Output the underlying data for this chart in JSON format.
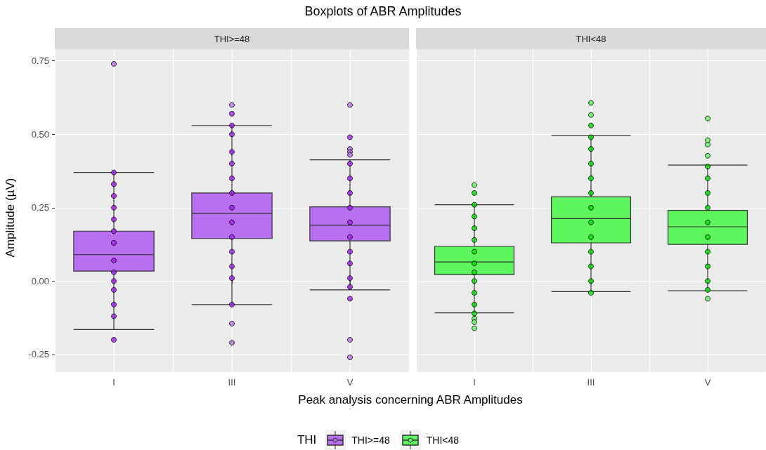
{
  "chart_data": [
    {
      "type": "box",
      "title": "Boxplots of ABR Amplitudes",
      "subtitle": "THI>=48",
      "xlabel": "Peak analysis concerning ABR Amplitudes",
      "ylabel": "Amplitude (µV)",
      "legend_title": "THI",
      "legend": "bottom",
      "grid": true,
      "categories": [
        "I",
        "III",
        "V"
      ],
      "ylim": [
        -0.31,
        0.79
      ],
      "yticks": [
        {
          "value": -0.25,
          "label": "-0.25"
        },
        {
          "value": 0,
          "label": "0.00"
        },
        {
          "value": 0.25,
          "label": "0.25"
        },
        {
          "value": 0.5,
          "label": "0.50"
        },
        {
          "value": 0.75,
          "label": "0.75"
        }
      ],
      "series": [
        {
          "name": "THI>=48",
          "color": "#b86ff0",
          "boxes": [
            {
              "low": -0.165,
              "q1": 0.034,
              "median": 0.09,
              "q3": 0.17,
              "high": 0.37,
              "mean": 0.105,
              "outliers": [
                0.74
              ]
            },
            {
              "low": -0.08,
              "q1": 0.145,
              "median": 0.23,
              "q3": 0.3,
              "high": 0.53,
              "mean": 0.232,
              "outliers": [
                0.6,
                -0.145,
                -0.21
              ]
            },
            {
              "low": -0.03,
              "q1": 0.137,
              "median": 0.19,
              "q3": 0.253,
              "high": 0.413,
              "mean": 0.192,
              "outliers": [
                0.6,
                0.45,
                0.44,
                0.43,
                -0.2,
                -0.26
              ]
            }
          ]
        },
        {
          "type": "scatter",
          "color": "#a020f0",
          "x": [
            "I",
            "I",
            "I",
            "I",
            "I",
            "I",
            "I",
            "I",
            "I",
            "I",
            "I",
            "I",
            "I",
            "I",
            "III",
            "III",
            "III",
            "III",
            "III",
            "III",
            "III",
            "III",
            "III",
            "III",
            "III",
            "III",
            "III",
            "III",
            "V",
            "V",
            "V",
            "V",
            "V",
            "V",
            "V",
            "V",
            "V",
            "V",
            "V",
            "V"
          ],
          "values": [
            0.37,
            0.33,
            0.29,
            0.25,
            0.21,
            0.17,
            0.13,
            0.07,
            0.03,
            0.0,
            -0.03,
            -0.08,
            -0.12,
            -0.2,
            0.57,
            0.53,
            0.5,
            0.44,
            0.4,
            0.35,
            0.3,
            0.25,
            0.2,
            0.15,
            0.1,
            0.05,
            0.01,
            -0.08,
            0.49,
            0.4,
            0.35,
            0.3,
            0.25,
            0.2,
            0.15,
            0.1,
            0.06,
            0.01,
            -0.02,
            -0.06
          ]
        }
      ]
    },
    {
      "type": "box",
      "subtitle": "THI<48",
      "grid": true,
      "tick_labels": "x",
      "categories": [
        "I",
        "III",
        "V"
      ],
      "ylim": [
        -0.31,
        0.79
      ],
      "yticks": [
        -0.25,
        0,
        0.25,
        0.5,
        0.75
      ],
      "series": [
        {
          "name": "THI<48",
          "color": "#5ff55f",
          "boxes": [
            {
              "low": -0.108,
              "q1": 0.022,
              "median": 0.065,
              "q3": 0.118,
              "high": 0.26,
              "mean": 0.072,
              "outliers": [
                0.327,
                -0.128,
                -0.14,
                -0.161
              ]
            },
            {
              "low": -0.036,
              "q1": 0.13,
              "median": 0.213,
              "q3": 0.287,
              "high": 0.496,
              "mean": 0.224,
              "outliers": [
                0.607,
                0.566
              ]
            },
            {
              "low": -0.033,
              "q1": 0.125,
              "median": 0.185,
              "q3": 0.241,
              "high": 0.395,
              "mean": 0.188,
              "outliers": [
                0.554,
                0.48,
                0.465,
                0.427,
                -0.06
              ]
            }
          ]
        },
        {
          "type": "scatter",
          "color": "#00e000",
          "x": [
            "I",
            "I",
            "I",
            "I",
            "I",
            "I",
            "I",
            "I",
            "I",
            "I",
            "I",
            "I",
            "III",
            "III",
            "III",
            "III",
            "III",
            "III",
            "III",
            "III",
            "III",
            "III",
            "III",
            "III",
            "III",
            "V",
            "V",
            "V",
            "V",
            "V",
            "V",
            "V",
            "V",
            "V",
            "V"
          ],
          "values": [
            0.3,
            0.26,
            0.22,
            0.18,
            0.14,
            0.1,
            0.06,
            0.03,
            0.0,
            -0.04,
            -0.08,
            -0.11,
            0.53,
            0.49,
            0.45,
            0.4,
            0.35,
            0.3,
            0.25,
            0.2,
            0.15,
            0.1,
            0.05,
            0.0,
            -0.04,
            0.39,
            0.35,
            0.3,
            0.25,
            0.2,
            0.15,
            0.1,
            0.05,
            0.0,
            -0.03
          ]
        }
      ]
    }
  ]
}
